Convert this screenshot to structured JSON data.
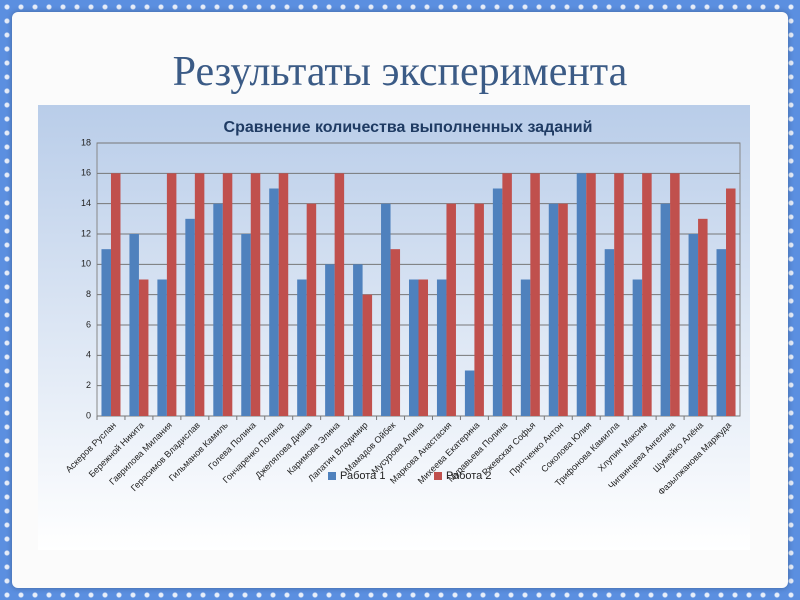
{
  "slide_title": "Результаты эксперимента",
  "chart_data": {
    "type": "bar",
    "title": "Сравнение количества выполненных заданий",
    "categories": [
      "Аскеров Руслан",
      "Бережной Никита",
      "Гаврилова Милания",
      "Герасимов Владислав",
      "Гильманов Камиль",
      "Голева Полина",
      "Гончаренко Полина",
      "Джелялова Диана",
      "Каримова Элина",
      "Лапатин Владимир",
      "Мамадов Ойбек",
      "Мусурова Алина",
      "Маркова Анастасия",
      "Михеева Екатерина",
      "Муравьева Полина",
      "Ржевская Софья",
      "Притченко Антон",
      "Соколова Юлия",
      "Трифонова Камилла",
      "Хлупин Максим",
      "Чигвинцева Ангелина",
      "Шумейко Алёна",
      "Фазылжанова Маржуда"
    ],
    "series": [
      {
        "name": "Работа 1",
        "color": "#4f81bd",
        "values": [
          11,
          12,
          9,
          13,
          14,
          12,
          15,
          9,
          10,
          10,
          14,
          9,
          9,
          3,
          15,
          9,
          14,
          16,
          11,
          9,
          14,
          12,
          11
        ]
      },
      {
        "name": "Работа 2",
        "color": "#c0504d",
        "values": [
          16,
          9,
          16,
          16,
          16,
          16,
          16,
          14,
          16,
          8,
          11,
          9,
          14,
          14,
          16,
          16,
          14,
          16,
          16,
          16,
          16,
          13,
          15
        ]
      }
    ],
    "ylim": [
      0,
      18
    ],
    "yticks": [
      0,
      2,
      4,
      6,
      8,
      10,
      12,
      14,
      16,
      18
    ],
    "grid": true,
    "legend": "bottom"
  }
}
